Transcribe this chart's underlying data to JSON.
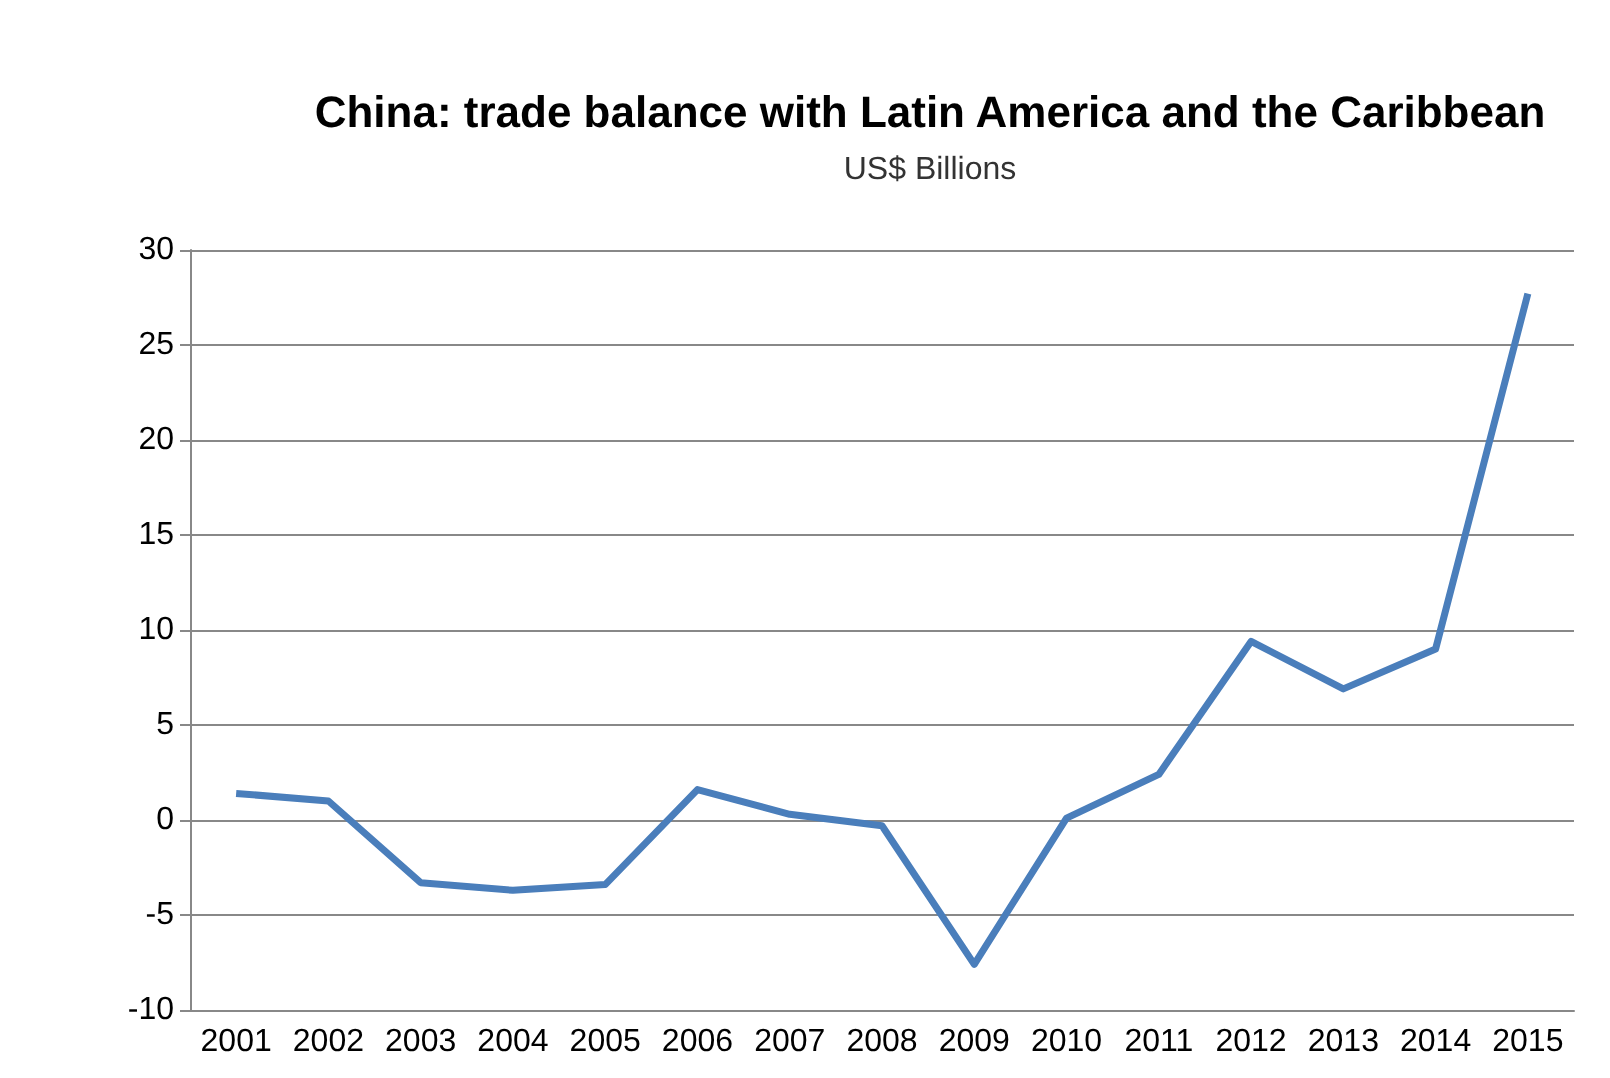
{
  "chart_data": {
    "type": "line",
    "title": "China: trade balance with Latin America and the Caribbean",
    "subtitle": "US$ Billions",
    "categories": [
      "2001",
      "2002",
      "2003",
      "2004",
      "2005",
      "2006",
      "2007",
      "2008",
      "2009",
      "2010",
      "2011",
      "2012",
      "2013",
      "2014",
      "2015"
    ],
    "series": [
      {
        "color": "#4a7ebb",
        "values": [
          1.4,
          1.0,
          -3.3,
          -3.7,
          -3.4,
          1.6,
          0.3,
          -0.3,
          -7.6,
          0.1,
          2.4,
          9.4,
          6.9,
          9.0,
          27.7
        ]
      }
    ],
    "ylim": [
      -10,
      30
    ],
    "yticks": [
      -10,
      -5,
      0,
      5,
      10,
      15,
      20,
      25,
      30
    ],
    "grid": "y",
    "marker": "none",
    "line_style": "solid"
  }
}
